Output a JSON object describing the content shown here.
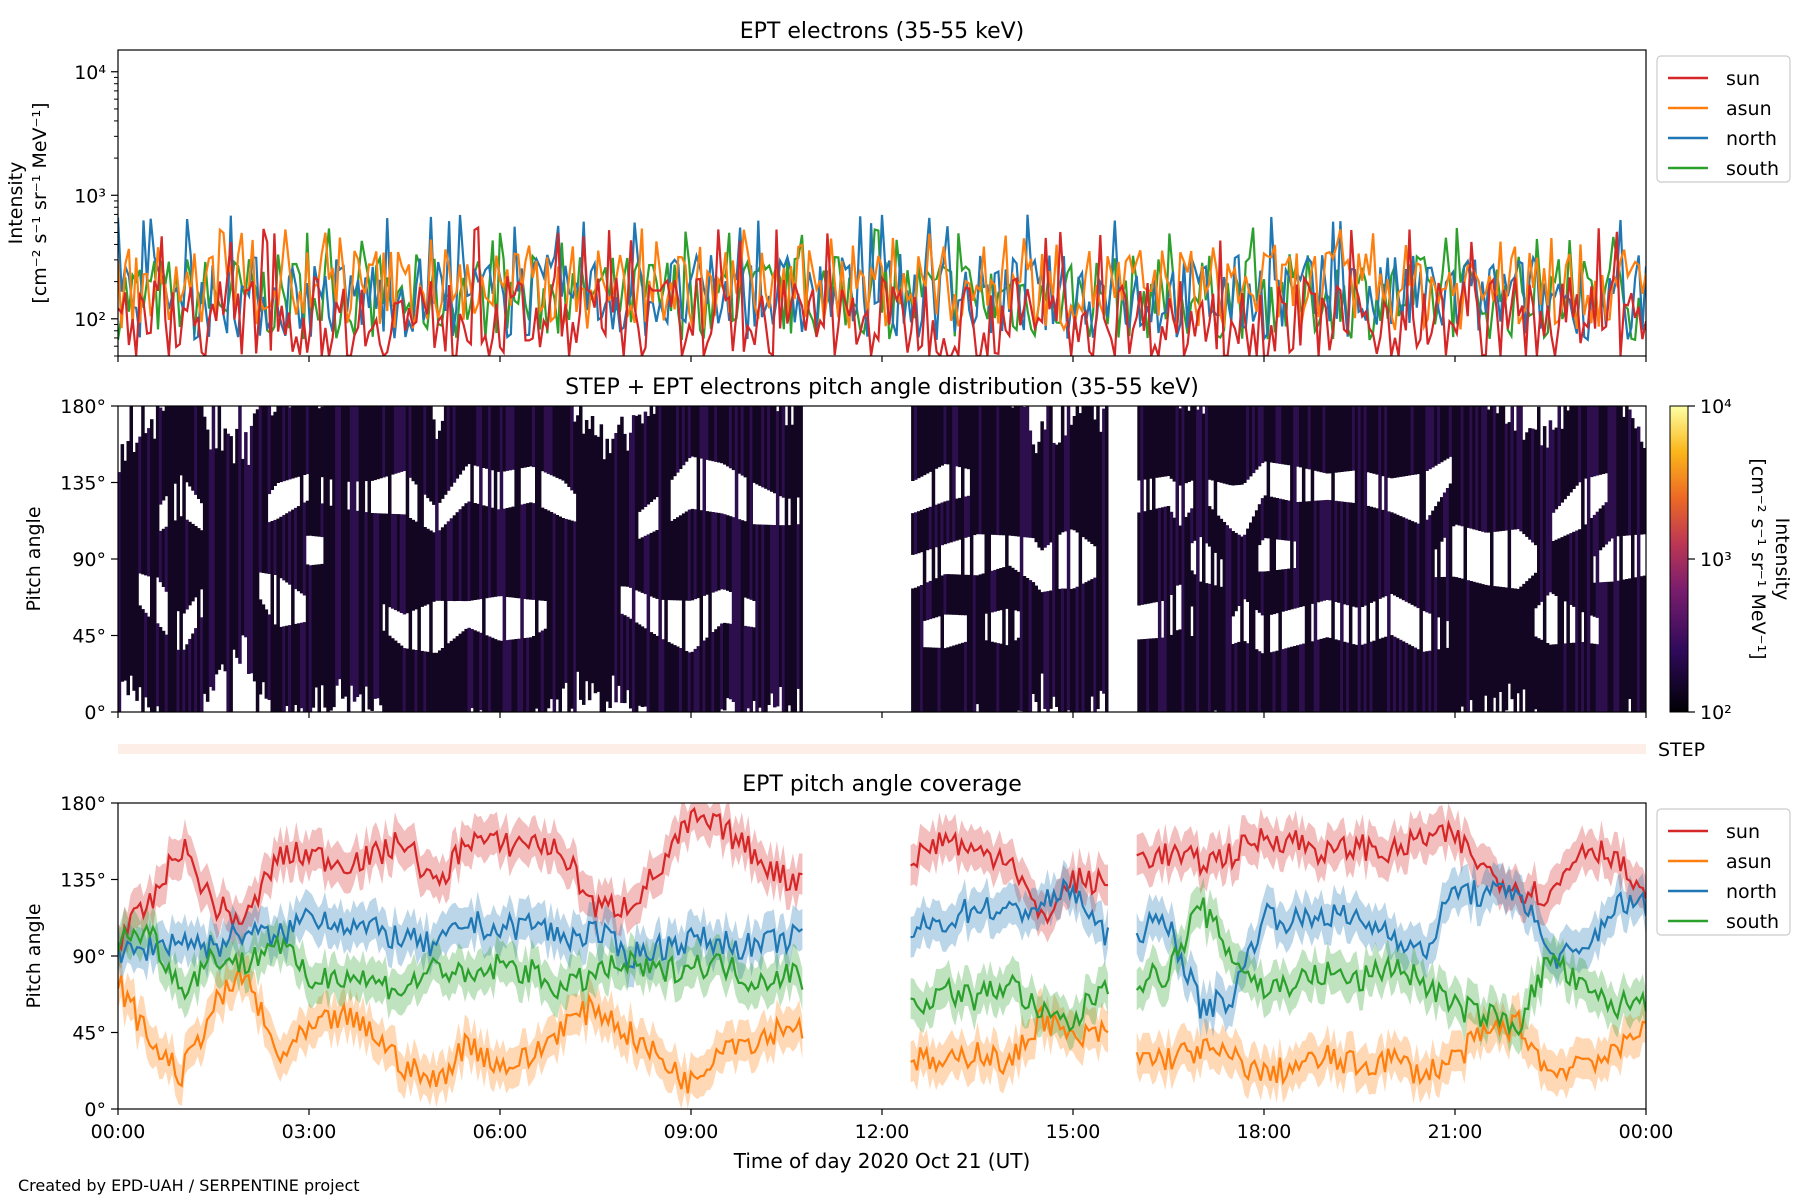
{
  "footer": "Created by EPD-UAH / SERPENTINE project",
  "legend_labels": [
    "sun",
    "asun",
    "north",
    "south"
  ],
  "colors": {
    "sun": "#d62728",
    "asun": "#ff7f0e",
    "north": "#1f77b4",
    "south": "#2ca02c",
    "step_band": "#fdeee8"
  },
  "xaxis": {
    "label": "Time of day 2020 Oct 21 (UT)",
    "ticks": [
      "00:00",
      "03:00",
      "06:00",
      "09:00",
      "12:00",
      "15:00",
      "18:00",
      "21:00",
      "00:00"
    ]
  },
  "chart_data": [
    {
      "type": "line",
      "title": "EPT electrons (35-55 keV)",
      "ylabel": "Intensity",
      "yunit": "[cm⁻² s⁻¹ sr⁻¹ MeV⁻¹]",
      "yscale": "log",
      "ylim": [
        50,
        15000
      ],
      "yticks": [
        "10²",
        "10³",
        "10⁴"
      ],
      "xlim": [
        "00:00",
        "24:00"
      ],
      "legend": "top-right outside",
      "series": [
        {
          "name": "sun",
          "baseline": 100,
          "range": [
            50,
            550
          ]
        },
        {
          "name": "asun",
          "baseline": 180,
          "range": [
            50,
            550
          ]
        },
        {
          "name": "north",
          "baseline": 150,
          "range": [
            50,
            700
          ]
        },
        {
          "name": "south",
          "baseline": 150,
          "range": [
            50,
            550
          ]
        }
      ]
    },
    {
      "type": "heatmap",
      "title": "STEP + EPT electrons pitch angle distribution (35-55 keV)",
      "ylabel": "Pitch angle",
      "yticks": [
        "0°",
        "45°",
        "90°",
        "135°",
        "180°"
      ],
      "ylim": [
        0,
        180
      ],
      "colorbar": {
        "label": "Intensity",
        "unit": "[cm⁻² s⁻¹ sr⁻¹ MeV⁻¹]",
        "scale": "log",
        "range": [
          100,
          10000
        ],
        "ticks": [
          "10²",
          "10³",
          "10⁴"
        ]
      },
      "step_label": "STEP",
      "data_gaps_hours": [
        [
          10.75,
          12.45
        ],
        [
          15.55,
          16.0
        ]
      ]
    },
    {
      "type": "line",
      "title": "EPT pitch angle coverage",
      "ylabel": "Pitch angle",
      "yticks": [
        "0°",
        "45°",
        "90°",
        "135°",
        "180°"
      ],
      "ylim": [
        0,
        180
      ],
      "legend": "top-right outside",
      "x_hours": [
        0,
        0.5,
        1,
        1.5,
        2,
        2.5,
        3,
        3.5,
        4,
        4.5,
        5,
        5.5,
        6,
        6.5,
        7,
        7.5,
        8,
        8.5,
        9,
        9.5,
        10,
        10.5,
        12.5,
        13,
        13.5,
        14,
        14.5,
        15,
        15.5,
        16,
        16.5,
        17,
        17.5,
        18,
        18.5,
        19,
        19.5,
        20,
        20.5,
        21,
        21.5,
        22,
        22.5,
        23,
        23.5,
        24
      ],
      "series": [
        {
          "name": "sun",
          "values": [
            100,
            120,
            155,
            120,
            110,
            148,
            150,
            145,
            148,
            158,
            130,
            160,
            155,
            158,
            150,
            118,
            120,
            140,
            170,
            165,
            150,
            135,
            148,
            160,
            150,
            150,
            110,
            135,
            132,
            148,
            150,
            145,
            150,
            160,
            158,
            150,
            155,
            150,
            160,
            160,
            140,
            130,
            125,
            155,
            150,
            120
          ]
        },
        {
          "name": "asun",
          "values": [
            75,
            40,
            20,
            60,
            80,
            30,
            45,
            55,
            45,
            25,
            15,
            40,
            25,
            30,
            50,
            60,
            45,
            30,
            15,
            40,
            40,
            50,
            30,
            25,
            35,
            25,
            55,
            40,
            45,
            30,
            30,
            35,
            30,
            20,
            25,
            30,
            25,
            30,
            20,
            30,
            45,
            50,
            20,
            30,
            30,
            55
          ]
        },
        {
          "name": "north",
          "values": [
            90,
            95,
            100,
            95,
            105,
            100,
            115,
            110,
            105,
            100,
            95,
            110,
            105,
            110,
            100,
            105,
            90,
            95,
            100,
            98,
            95,
            100,
            105,
            110,
            120,
            115,
            120,
            130,
            100,
            105,
            110,
            60,
            65,
            115,
            110,
            115,
            110,
            105,
            90,
            130,
            125,
            130,
            90,
            90,
            120,
            120
          ]
        },
        {
          "name": "south",
          "values": [
            100,
            105,
            70,
            90,
            85,
            100,
            75,
            80,
            75,
            70,
            85,
            75,
            85,
            80,
            70,
            80,
            85,
            80,
            85,
            85,
            75,
            80,
            60,
            70,
            65,
            75,
            55,
            50,
            75,
            75,
            80,
            120,
            90,
            70,
            75,
            80,
            75,
            85,
            75,
            60,
            55,
            50,
            90,
            70,
            60,
            65
          ]
        }
      ]
    }
  ]
}
